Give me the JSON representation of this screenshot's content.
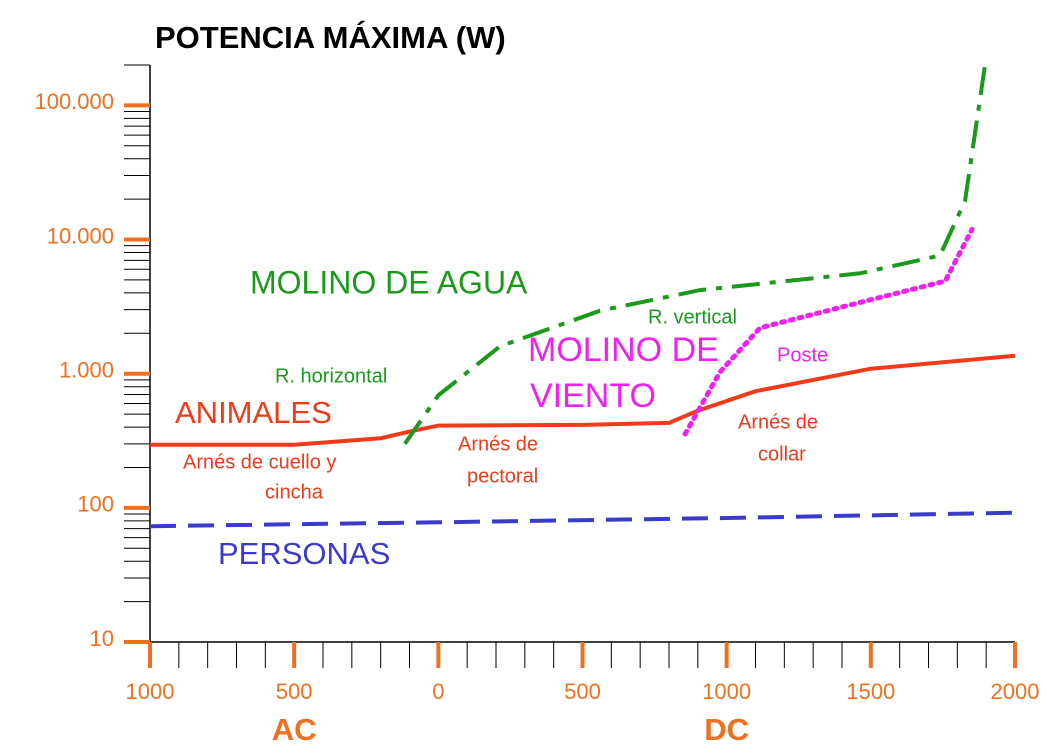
{
  "chart_data": {
    "type": "line",
    "title": "POTENCIA MÁXIMA (W)",
    "log_y": true,
    "xlim": [
      -1000,
      2000
    ],
    "xticks": [
      {
        "value": -1000,
        "label": "1000"
      },
      {
        "value": -500,
        "label": "500"
      },
      {
        "value": 0,
        "label": "0"
      },
      {
        "value": 500,
        "label": "500"
      },
      {
        "value": 1000,
        "label": "1000"
      },
      {
        "value": 1500,
        "label": "1500"
      },
      {
        "value": 2000,
        "label": "2000"
      }
    ],
    "ylim": [
      10,
      200000
    ],
    "yticks": [
      {
        "value": 10,
        "label": "10"
      },
      {
        "value": 100,
        "label": "100"
      },
      {
        "value": 1000,
        "label": "1.000"
      },
      {
        "value": 10000,
        "label": "10.000"
      },
      {
        "value": 100000,
        "label": "100.000"
      }
    ],
    "era_labels": [
      "AC",
      "DC"
    ],
    "series": [
      {
        "color": "#3a3acc",
        "dash": "dashed",
        "x": [
          -1000,
          0,
          1000,
          2000
        ],
        "values": [
          73,
          78,
          84,
          92
        ]
      },
      {
        "color": "#f03a1a",
        "dash": "solid",
        "x": [
          -1000,
          -500,
          -200,
          -100,
          0,
          500,
          800,
          900,
          1100,
          1500,
          2000
        ],
        "values": [
          295,
          295,
          330,
          370,
          410,
          415,
          430,
          530,
          740,
          1090,
          1360
        ]
      },
      {
        "color": "#1a9a1a",
        "dash": "dashdot",
        "x": [
          -116,
          0,
          214,
          561,
          908,
          1463,
          1740,
          1827,
          1896
        ],
        "values": [
          300,
          690,
          1600,
          2950,
          4200,
          5600,
          7600,
          19500,
          200000
        ]
      },
      {
        "color": "#f020f0",
        "dash": "dotted",
        "x": [
          856,
          977,
          1116,
          1463,
          1758,
          1851
        ],
        "values": [
          355,
          1030,
          2200,
          3400,
          4900,
          11900
        ]
      }
    ],
    "annotations": [
      {
        "text": "MOLINO DE AGUA",
        "color": "#1a9a1a"
      },
      {
        "text": "R. horizontal",
        "color": "#1a9a1a"
      },
      {
        "text": "R. vertical",
        "color": "#1a9a1a"
      },
      {
        "text": "MOLINO DE",
        "color": "#f020f0"
      },
      {
        "text": "VIENTO",
        "color": "#f020f0"
      },
      {
        "text": "Poste",
        "color": "#f020f0"
      },
      {
        "text": "ANIMALES",
        "color": "#f03a1a"
      },
      {
        "text": "Arnés de cuello y",
        "color": "#f03a1a"
      },
      {
        "text": "cincha",
        "color": "#f03a1a"
      },
      {
        "text": "Arnés de",
        "color": "#f03a1a"
      },
      {
        "text": "pectoral",
        "color": "#f03a1a"
      },
      {
        "text": "Arnés de",
        "color": "#f03a1a"
      },
      {
        "text": "collar",
        "color": "#f03a1a"
      },
      {
        "text": "PERSONAS",
        "color": "#3a3acc"
      }
    ]
  }
}
